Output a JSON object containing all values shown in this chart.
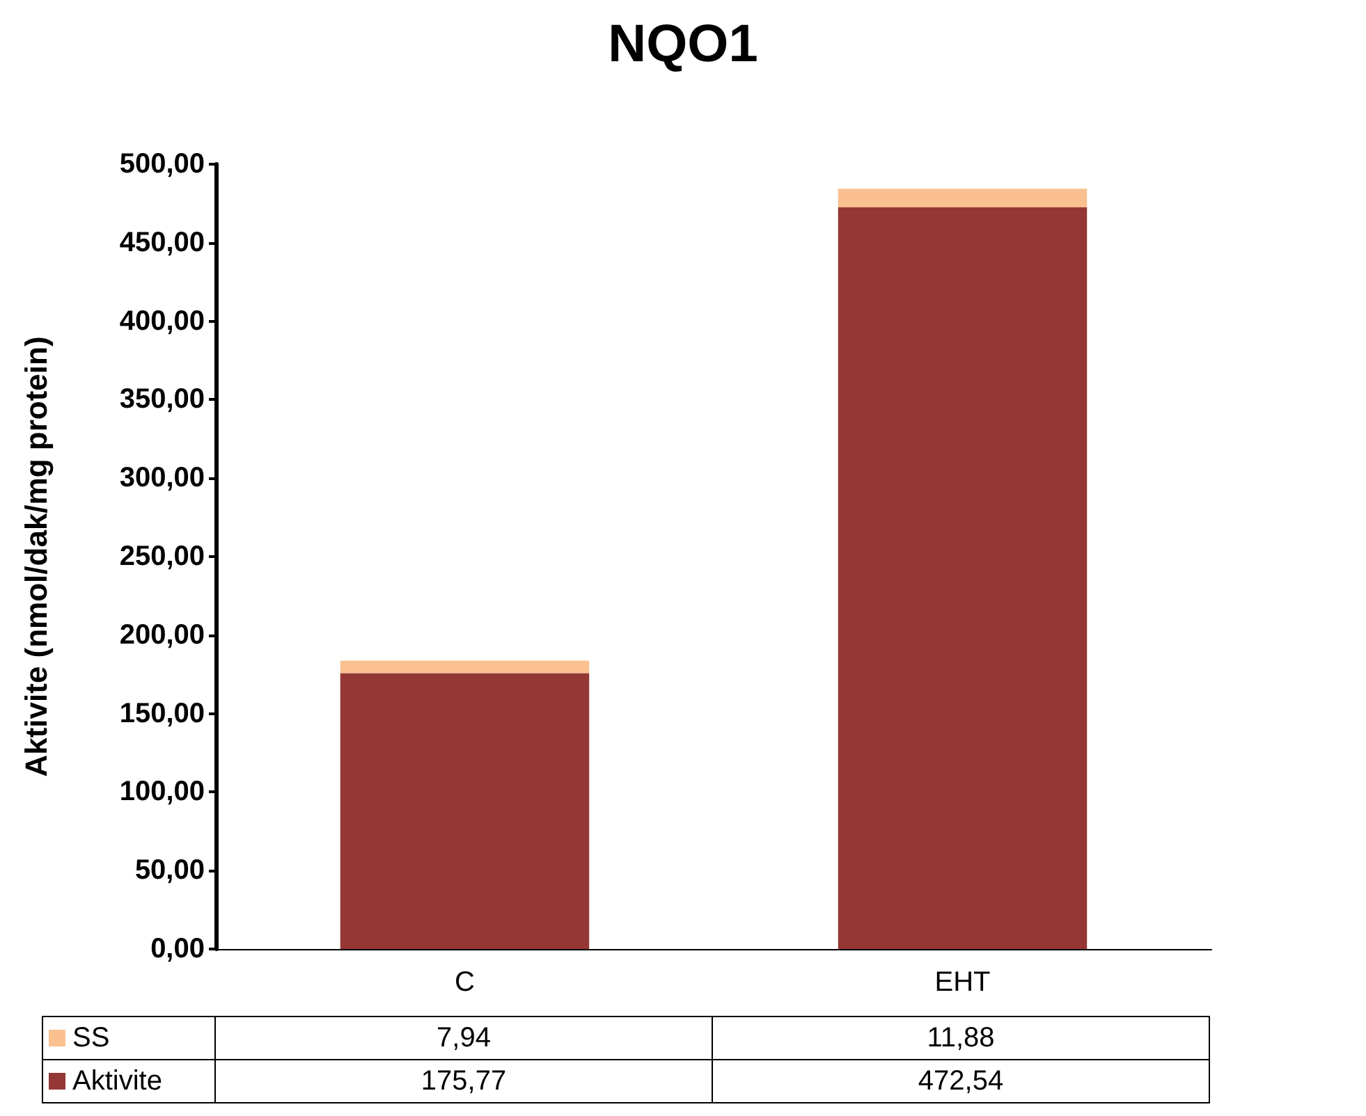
{
  "chart_data": {
    "type": "bar",
    "title": "NQO1",
    "ylabel": "Aktivite (nmol/dak/mg protein)",
    "categories": [
      "C",
      "EHT"
    ],
    "stacked": true,
    "series": [
      {
        "name": "Aktivite",
        "color": "#953735",
        "values": [
          175.77,
          472.54
        ],
        "value_labels": [
          "175,77",
          "472,54"
        ]
      },
      {
        "name": "SS",
        "color": "#fac090",
        "values": [
          7.94,
          11.88
        ],
        "value_labels": [
          "7,94",
          "11,88"
        ]
      }
    ],
    "ylim": [
      0,
      500
    ],
    "yticks": [
      {
        "value": 0,
        "label": "0,00"
      },
      {
        "value": 50,
        "label": "50,00"
      },
      {
        "value": 100,
        "label": "100,00"
      },
      {
        "value": 150,
        "label": "150,00"
      },
      {
        "value": 200,
        "label": "200,00"
      },
      {
        "value": 250,
        "label": "250,00"
      },
      {
        "value": 300,
        "label": "300,00"
      },
      {
        "value": 350,
        "label": "350,00"
      },
      {
        "value": 400,
        "label": "400,00"
      },
      {
        "value": 450,
        "label": "450,00"
      },
      {
        "value": 500,
        "label": "500,00"
      }
    ],
    "grid": false,
    "legend": "bottom"
  }
}
